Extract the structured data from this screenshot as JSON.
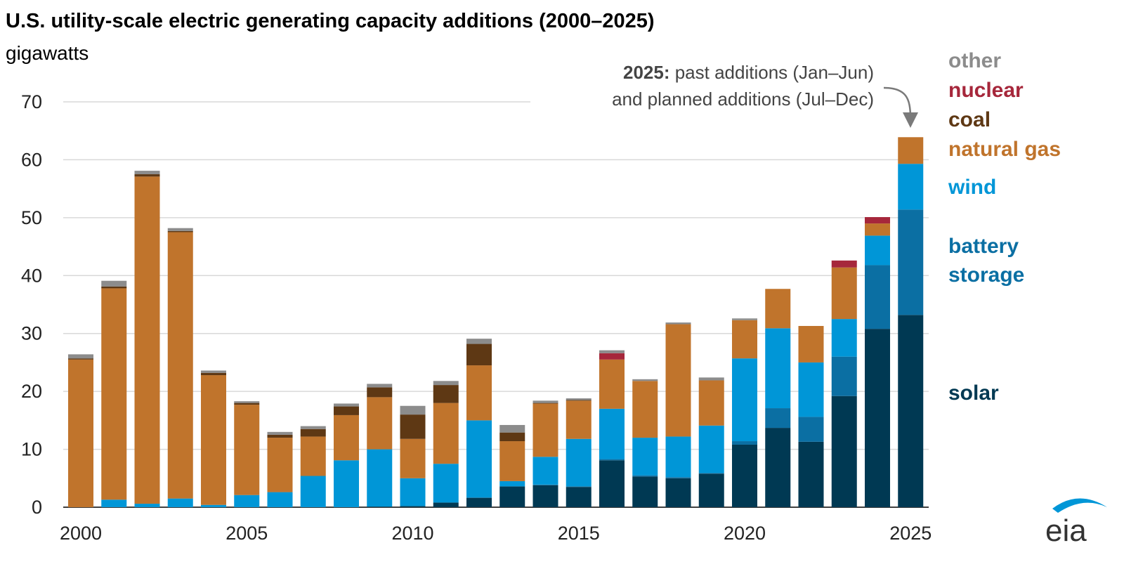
{
  "chart_data": {
    "type": "bar",
    "stacked": true,
    "title": "U.S. utility-scale electric generating capacity additions (2000–2025)",
    "subtitle": "gigawatts",
    "ylim": [
      0,
      70
    ],
    "y_ticks": [
      "0",
      "10",
      "20",
      "30",
      "40",
      "50",
      "60",
      "70"
    ],
    "x_tick_labels": [
      "2000",
      "2005",
      "2010",
      "2015",
      "2020",
      "2025"
    ],
    "grid": true,
    "legend_placement": "right",
    "categories": [
      2000,
      2001,
      2002,
      2003,
      2004,
      2005,
      2006,
      2007,
      2008,
      2009,
      2010,
      2011,
      2012,
      2013,
      2014,
      2015,
      2016,
      2017,
      2018,
      2019,
      2020,
      2021,
      2022,
      2023,
      2024,
      2025
    ],
    "series": [
      {
        "name": "solar",
        "color": "#003953",
        "values": [
          0,
          0,
          0,
          0,
          0,
          0,
          0,
          0,
          0,
          0.1,
          0.2,
          0.8,
          1.6,
          3.6,
          3.8,
          3.5,
          8.1,
          5.3,
          5.0,
          5.8,
          10.8,
          13.7,
          11.3,
          19.2,
          30.8,
          33.2
        ]
      },
      {
        "name": "battery storage",
        "color": "#0b6fa3",
        "values": [
          0,
          0,
          0,
          0,
          0,
          0,
          0,
          0,
          0,
          0,
          0,
          0,
          0.1,
          0,
          0.1,
          0.1,
          0.2,
          0.2,
          0.2,
          0.1,
          0.6,
          3.4,
          4.3,
          6.8,
          11.0,
          18.2
        ]
      },
      {
        "name": "wind",
        "color": "#0096d7",
        "values": [
          0,
          1.3,
          0.6,
          1.5,
          0.4,
          2.1,
          2.6,
          5.4,
          8.1,
          9.9,
          4.8,
          6.7,
          13.3,
          0.9,
          4.8,
          8.2,
          8.7,
          6.5,
          7.0,
          8.2,
          14.3,
          13.8,
          9.4,
          6.5,
          5.1,
          7.9
        ]
      },
      {
        "name": "natural gas",
        "color": "#c0742c",
        "values": [
          25.5,
          36.5,
          56.5,
          46.0,
          22.4,
          15.6,
          9.4,
          6.8,
          7.8,
          9.0,
          6.8,
          10.5,
          9.5,
          6.9,
          9.2,
          6.6,
          8.5,
          9.8,
          19.4,
          7.8,
          6.6,
          6.8,
          6.3,
          8.9,
          2.1,
          4.6
        ]
      },
      {
        "name": "coal",
        "color": "#5e3814",
        "values": [
          0.2,
          0.3,
          0.4,
          0.2,
          0.4,
          0.3,
          0.5,
          1.3,
          1.5,
          1.7,
          4.2,
          3.1,
          3.7,
          1.5,
          0.1,
          0.1,
          0,
          0,
          0,
          0,
          0,
          0,
          0,
          0,
          0,
          0
        ]
      },
      {
        "name": "nuclear",
        "color": "#a6273b",
        "values": [
          0,
          0,
          0,
          0,
          0,
          0,
          0,
          0,
          0,
          0,
          0,
          0,
          0,
          0,
          0,
          0,
          1.1,
          0,
          0,
          0,
          0,
          0,
          0,
          1.2,
          1.1,
          0
        ]
      },
      {
        "name": "other",
        "color": "#8c8c8c",
        "values": [
          0.7,
          1.0,
          0.6,
          0.5,
          0.4,
          0.3,
          0.5,
          0.5,
          0.5,
          0.6,
          1.5,
          0.7,
          0.9,
          1.3,
          0.4,
          0.3,
          0.5,
          0.3,
          0.3,
          0.5,
          0.3,
          0,
          0,
          0,
          0,
          0
        ]
      }
    ],
    "legend": [
      {
        "label": "other",
        "color": "#8c8c8c"
      },
      {
        "label": "nuclear",
        "color": "#a6273b"
      },
      {
        "label": "coal",
        "color": "#5e3814"
      },
      {
        "label": "natural gas",
        "color": "#c0742c"
      },
      {
        "label": "wind",
        "color": "#0096d7"
      },
      {
        "label": "battery",
        "color": "#0b6fa3"
      },
      {
        "label": "storage",
        "color": "#0b6fa3"
      },
      {
        "label": "solar",
        "color": "#003953"
      }
    ],
    "annotation": {
      "bold": "2025:",
      "line1": " past additions (Jan–Jun)",
      "line2": "and planned additions (Jul–Dec)"
    }
  },
  "logo": {
    "text": "eia"
  }
}
